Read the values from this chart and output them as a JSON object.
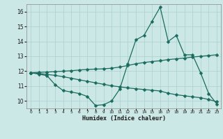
{
  "title": "",
  "xlabel": "Humidex (Indice chaleur)",
  "background_color": "#cce8e6",
  "grid_color": "#aad0cc",
  "line_color": "#1a6b5e",
  "xlim": [
    -0.5,
    23.5
  ],
  "ylim": [
    9.5,
    16.5
  ],
  "yticks": [
    10,
    11,
    12,
    13,
    14,
    15,
    16
  ],
  "xticks": [
    0,
    1,
    2,
    3,
    4,
    5,
    6,
    7,
    8,
    9,
    10,
    11,
    12,
    13,
    14,
    15,
    16,
    17,
    18,
    19,
    20,
    21,
    22,
    23
  ],
  "line1_x": [
    0,
    1,
    2,
    3,
    4,
    5,
    6,
    7,
    8,
    9,
    10,
    11,
    12,
    13,
    14,
    15,
    16,
    17,
    18,
    19,
    20,
    21,
    22,
    23
  ],
  "line1_y": [
    11.9,
    11.8,
    11.7,
    11.1,
    10.7,
    10.6,
    10.5,
    10.3,
    9.7,
    9.75,
    10.0,
    10.8,
    12.5,
    14.1,
    14.4,
    15.35,
    16.3,
    14.0,
    14.4,
    13.1,
    13.1,
    11.9,
    10.5,
    9.8
  ],
  "line2_x": [
    0,
    1,
    2,
    3,
    4,
    5,
    6,
    7,
    8,
    9,
    10,
    11,
    12,
    13,
    14,
    15,
    16,
    17,
    18,
    19,
    20,
    21,
    22,
    23
  ],
  "line2_y": [
    11.9,
    11.92,
    11.94,
    11.97,
    12.0,
    12.03,
    12.08,
    12.12,
    12.14,
    12.16,
    12.2,
    12.28,
    12.38,
    12.5,
    12.58,
    12.65,
    12.7,
    12.78,
    12.83,
    12.88,
    12.95,
    13.0,
    13.05,
    13.1
  ],
  "line3_x": [
    0,
    1,
    2,
    3,
    4,
    5,
    6,
    7,
    8,
    9,
    10,
    11,
    12,
    13,
    14,
    15,
    16,
    17,
    18,
    19,
    20,
    21,
    22,
    23
  ],
  "line3_y": [
    11.9,
    11.85,
    11.78,
    11.72,
    11.63,
    11.53,
    11.42,
    11.32,
    11.22,
    11.12,
    11.02,
    10.95,
    10.88,
    10.82,
    10.77,
    10.72,
    10.67,
    10.52,
    10.42,
    10.35,
    10.28,
    10.22,
    10.1,
    9.95
  ]
}
